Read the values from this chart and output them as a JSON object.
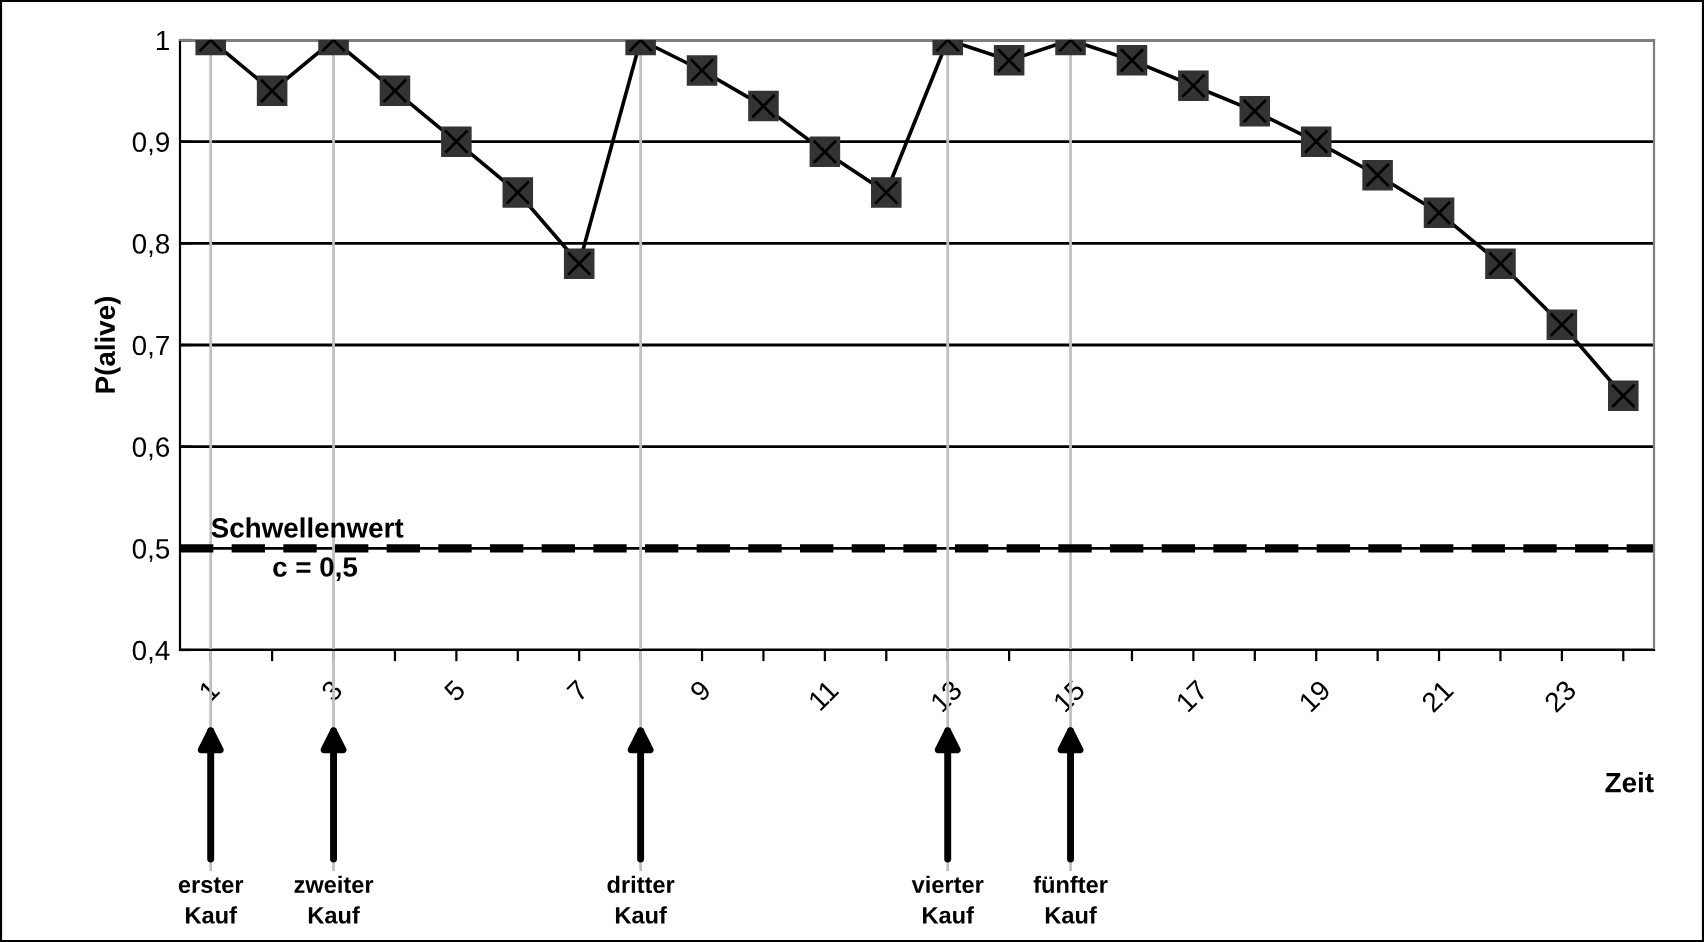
{
  "chart_data": {
    "type": "line",
    "ylabel": "P(alive)",
    "xlabel": "Zeit",
    "x": [
      1,
      2,
      3,
      4,
      5,
      6,
      7,
      8,
      9,
      10,
      11,
      12,
      13,
      14,
      15,
      16,
      17,
      18,
      19,
      20,
      21,
      22,
      23,
      24
    ],
    "series": [
      {
        "color": "#333333",
        "values": [
          1,
          0.95,
          1,
          0.95,
          0.9,
          0.85,
          0.78,
          1,
          0.97,
          0.935,
          0.89,
          0.85,
          1,
          0.98,
          1,
          0.98,
          0.955,
          0.93,
          0.9,
          0.867,
          0.83,
          0.78,
          0.72,
          0.65
        ]
      }
    ],
    "xlim": [
      0.5,
      24.5
    ],
    "xticks": [
      1,
      {
        "value": 2,
        "label": null
      },
      3,
      {
        "value": 4,
        "label": null
      },
      5,
      {
        "value": 6,
        "label": null
      },
      7,
      {
        "value": 8,
        "label": null
      },
      9,
      {
        "value": 10,
        "label": null
      },
      11,
      {
        "value": 12,
        "label": null
      },
      13,
      {
        "value": 14,
        "label": null
      },
      15,
      {
        "value": 16,
        "label": null
      },
      17,
      {
        "value": 18,
        "label": null
      },
      19,
      {
        "value": 20,
        "label": null
      },
      21,
      {
        "value": 22,
        "label": null
      },
      23,
      {
        "value": 24,
        "label": null
      }
    ],
    "ylim": [
      0.4,
      1
    ],
    "yticks": [
      {
        "value": 0.4,
        "label": "0,4"
      },
      {
        "value": 0.5,
        "label": "0,5"
      },
      {
        "value": 0.6,
        "label": "0,6"
      },
      {
        "value": 0.7,
        "label": "0,7"
      },
      {
        "value": 0.8,
        "label": "0,8"
      },
      {
        "value": 0.9,
        "label": "0,9"
      },
      1
    ],
    "ref_lines": [
      {
        "axis": "y",
        "value": 0.5,
        "label": "Schwellenwert\nc = 0,5",
        "color": "#000000",
        "line_style": "dashed"
      },
      {
        "axis": "x",
        "value": 1,
        "label": "erster\nKauf",
        "color": "#c0c0c0"
      },
      {
        "axis": "x",
        "value": 3,
        "label": "zweiter\nKauf",
        "color": "#c0c0c0"
      },
      {
        "axis": "x",
        "value": 8,
        "label": "dritter\nKauf",
        "color": "#c0c0c0"
      },
      {
        "axis": "x",
        "value": 13,
        "label": "vierter\nKauf",
        "color": "#c0c0c0"
      },
      {
        "axis": "x",
        "value": 15,
        "label": "fünfter\nKauf",
        "color": "#c0c0c0"
      }
    ],
    "grid": "y",
    "marker": "square",
    "line_style": "solid",
    "legend": false
  }
}
